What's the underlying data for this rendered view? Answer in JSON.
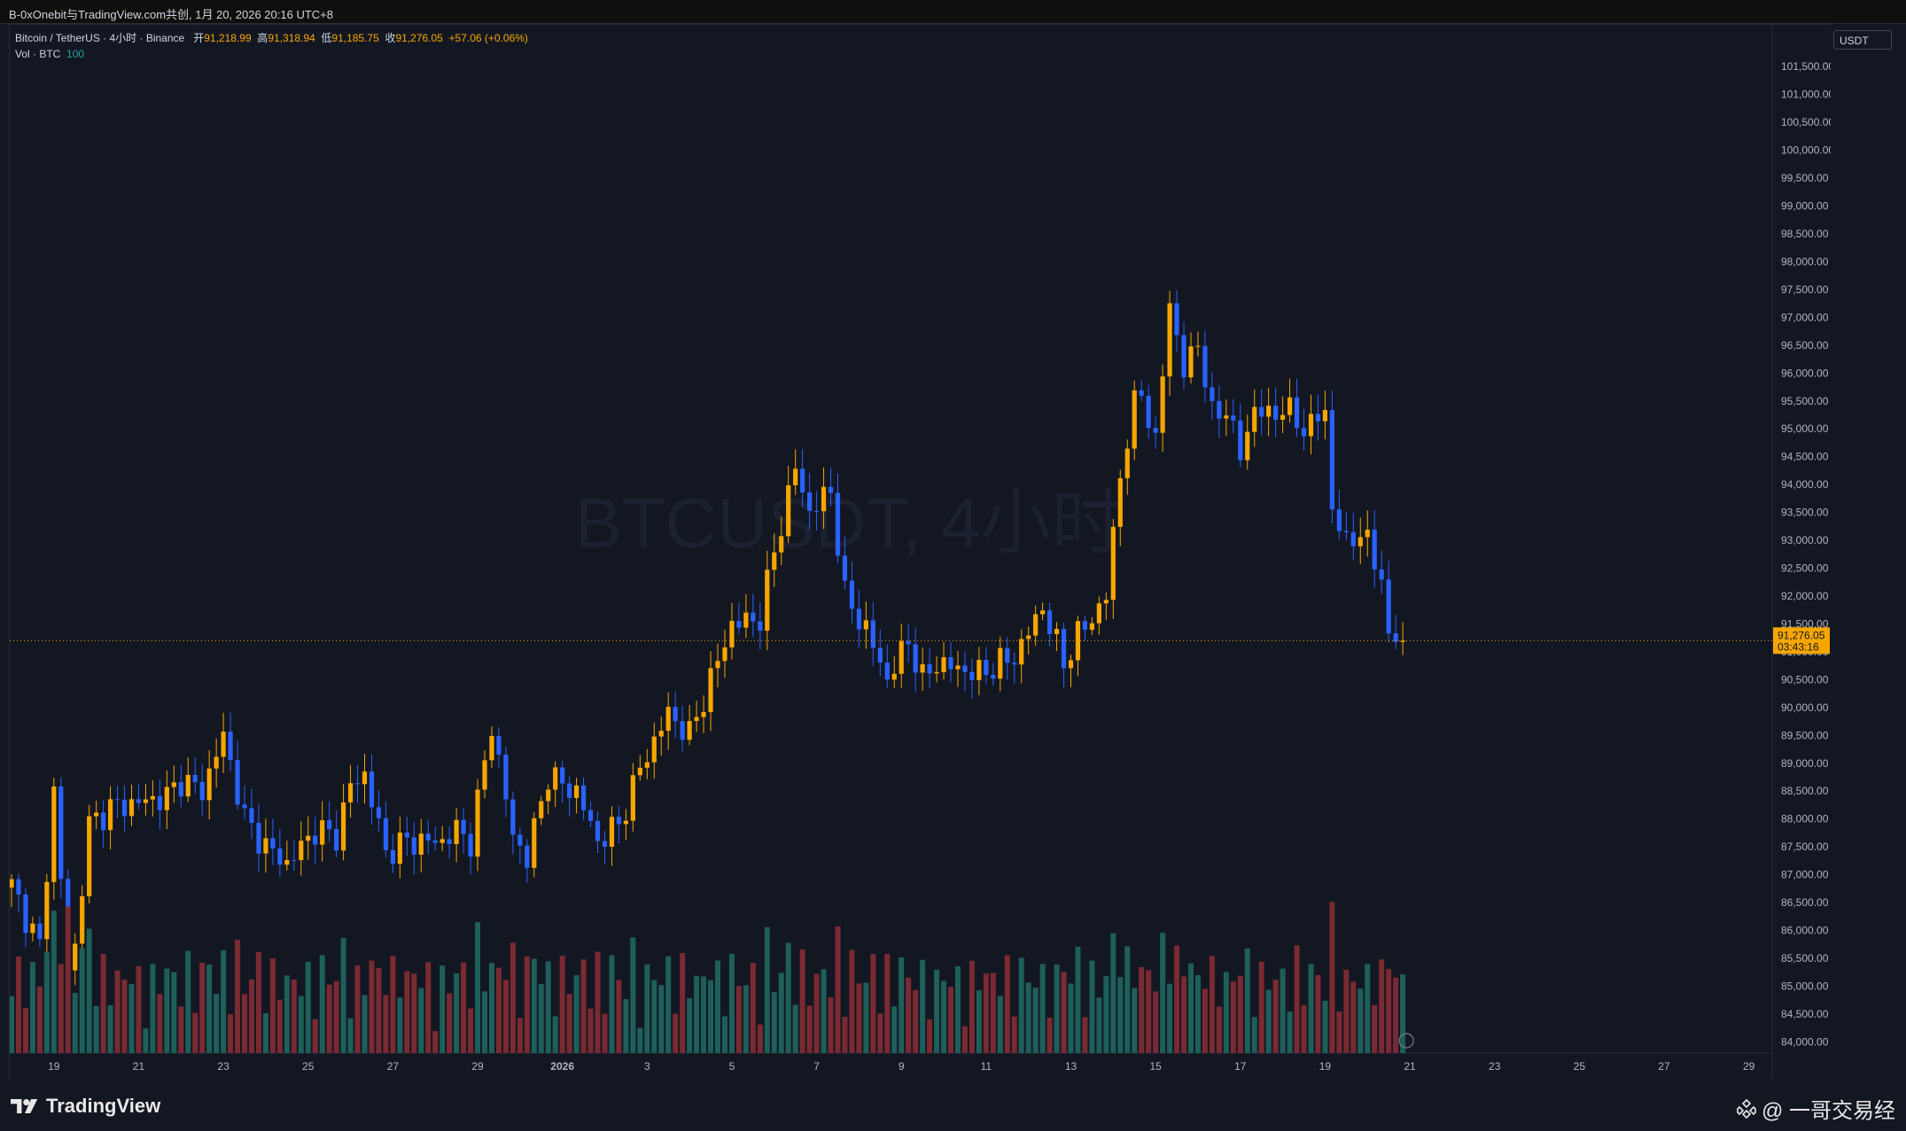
{
  "header": {
    "title": "B-0xOnebit与TradingView.com共创, 1月 20, 2026 20:16 UTC+8"
  },
  "legend": {
    "symbol": "Bitcoin / TetherUS · 4小时 · Binance",
    "open_label": "开",
    "open": "91,218.99",
    "high_label": "高",
    "high": "91,318.94",
    "low_label": "低",
    "low": "91,185.75",
    "close_label": "收",
    "close": "91,276.05",
    "change": "+57.06 (+0.06%)",
    "volume_label": "Vol · BTC",
    "volume_value": "100"
  },
  "price_axis": {
    "currency": "USDT",
    "current_price": "91,276.05",
    "countdown": "03:43:16"
  },
  "watermark": "BTCUSDT, 4小时",
  "footer": {
    "brand": "TradingView",
    "author": "@ 一哥交易经"
  },
  "colors": {
    "background": "#131722",
    "up": "#f7a600",
    "down": "#2962ff",
    "vol_up": "#1e5f5a",
    "vol_down": "#7a2a32",
    "grid": "#1e222d",
    "price_line": "#f7a600"
  },
  "chart_data": {
    "type": "candlestick",
    "interval": "4小时",
    "y_ticks": [
      "84,000.00",
      "84,500.00",
      "85,000.00",
      "85,500.00",
      "86,000.00",
      "86,500.00",
      "87,000.00",
      "87,500.00",
      "88,000.00",
      "88,500.00",
      "89,000.00",
      "89,500.00",
      "90,000.00",
      "90,500.00",
      "91,000.00",
      "91,500.00",
      "92,000.00",
      "92,500.00",
      "93,000.00",
      "93,500.00",
      "94,000.00",
      "94,500.00",
      "95,000.00",
      "95,500.00",
      "96,000.00",
      "96,500.00",
      "97,000.00",
      "97,500.00",
      "98,000.00",
      "98,500.00",
      "99,000.00",
      "99,500.00",
      "100,000.00",
      "100,500.00",
      "101,000.00",
      "101,500.00"
    ],
    "ylim": [
      83800,
      102250
    ],
    "x_ticks": [
      "19",
      "21",
      "23",
      "25",
      "27",
      "29",
      "2026",
      "3",
      "5",
      "7",
      "9",
      "11",
      "13",
      "15",
      "17",
      "19",
      "21",
      "23",
      "25",
      "27",
      "29"
    ],
    "anchors": [
      {
        "i": 0,
        "p": 86800
      },
      {
        "i": 4,
        "p": 85700
      },
      {
        "i": 6,
        "p": 88500
      },
      {
        "i": 8,
        "p": 85300
      },
      {
        "i": 9,
        "p": 85700
      },
      {
        "i": 11,
        "p": 87900
      },
      {
        "i": 14,
        "p": 88200
      },
      {
        "i": 22,
        "p": 88400
      },
      {
        "i": 24,
        "p": 88700
      },
      {
        "i": 27,
        "p": 88500
      },
      {
        "i": 30,
        "p": 89500
      },
      {
        "i": 33,
        "p": 88000
      },
      {
        "i": 36,
        "p": 87500
      },
      {
        "i": 39,
        "p": 87200
      },
      {
        "i": 43,
        "p": 87800
      },
      {
        "i": 46,
        "p": 87700
      },
      {
        "i": 48,
        "p": 88600
      },
      {
        "i": 50,
        "p": 88800
      },
      {
        "i": 53,
        "p": 87400
      },
      {
        "i": 56,
        "p": 87600
      },
      {
        "i": 61,
        "p": 87600
      },
      {
        "i": 63,
        "p": 87800
      },
      {
        "i": 65,
        "p": 87600
      },
      {
        "i": 68,
        "p": 89700
      },
      {
        "i": 71,
        "p": 87700
      },
      {
        "i": 73,
        "p": 87300
      },
      {
        "i": 76,
        "p": 88800
      },
      {
        "i": 78,
        "p": 88600
      },
      {
        "i": 80,
        "p": 88500
      },
      {
        "i": 83,
        "p": 87600
      },
      {
        "i": 86,
        "p": 87900
      },
      {
        "i": 89,
        "p": 88900
      },
      {
        "i": 93,
        "p": 89900
      },
      {
        "i": 96,
        "p": 89500
      },
      {
        "i": 99,
        "p": 90500
      },
      {
        "i": 102,
        "p": 91500
      },
      {
        "i": 106,
        "p": 91600
      },
      {
        "i": 108,
        "p": 92800
      },
      {
        "i": 111,
        "p": 94300
      },
      {
        "i": 113,
        "p": 93500
      },
      {
        "i": 116,
        "p": 93900
      },
      {
        "i": 118,
        "p": 92000
      },
      {
        "i": 121,
        "p": 91400
      },
      {
        "i": 124,
        "p": 90500
      },
      {
        "i": 127,
        "p": 91200
      },
      {
        "i": 129,
        "p": 90500
      },
      {
        "i": 131,
        "p": 90800
      },
      {
        "i": 134,
        "p": 90700
      },
      {
        "i": 137,
        "p": 90600
      },
      {
        "i": 140,
        "p": 90800
      },
      {
        "i": 142,
        "p": 90900
      },
      {
        "i": 146,
        "p": 91800
      },
      {
        "i": 149,
        "p": 90800
      },
      {
        "i": 151,
        "p": 91300
      },
      {
        "i": 153,
        "p": 91600
      },
      {
        "i": 155,
        "p": 92000
      },
      {
        "i": 157,
        "p": 94200
      },
      {
        "i": 159,
        "p": 95400
      },
      {
        "i": 160,
        "p": 95700
      },
      {
        "i": 162,
        "p": 94700
      },
      {
        "i": 164,
        "p": 97300
      },
      {
        "i": 166,
        "p": 96000
      },
      {
        "i": 168,
        "p": 96600
      },
      {
        "i": 170,
        "p": 95200
      },
      {
        "i": 172,
        "p": 95400
      },
      {
        "i": 174,
        "p": 94500
      },
      {
        "i": 176,
        "p": 95400
      },
      {
        "i": 178,
        "p": 95200
      },
      {
        "i": 180,
        "p": 95400
      },
      {
        "i": 183,
        "p": 95000
      },
      {
        "i": 186,
        "p": 95300
      },
      {
        "i": 187,
        "p": 93600
      },
      {
        "i": 189,
        "p": 92900
      },
      {
        "i": 191,
        "p": 93200
      },
      {
        "i": 193,
        "p": 92600
      },
      {
        "i": 194,
        "p": 92400
      },
      {
        "i": 195,
        "p": 91200
      },
      {
        "i": 197,
        "p": 91276
      }
    ]
  }
}
